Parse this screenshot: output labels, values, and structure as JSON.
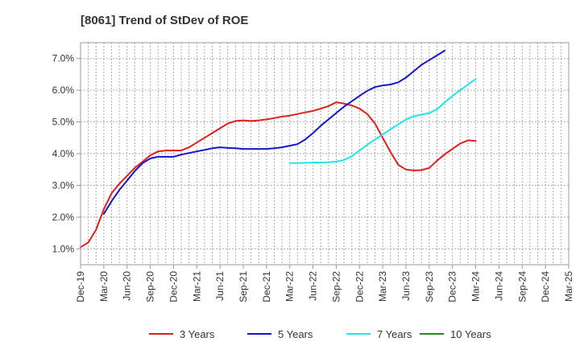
{
  "chart_data": {
    "type": "line",
    "title": "[8061]  Trend of StDev of ROE",
    "xlabel": "",
    "ylabel": "",
    "ylim": [
      0.5,
      7.5
    ],
    "yticks": [
      1.0,
      2.0,
      3.0,
      4.0,
      5.0,
      6.0,
      7.0
    ],
    "ytick_labels": [
      "1.0%",
      "2.0%",
      "3.0%",
      "4.0%",
      "5.0%",
      "6.0%",
      "7.0%"
    ],
    "x_categories": [
      "Dec-19",
      "Mar-20",
      "Jun-20",
      "Sep-20",
      "Dec-20",
      "Mar-21",
      "Jun-21",
      "Sep-21",
      "Dec-21",
      "Mar-22",
      "Jun-22",
      "Sep-22",
      "Dec-22",
      "Mar-23",
      "Jun-23",
      "Sep-23",
      "Dec-23",
      "Mar-24",
      "Jun-24",
      "Sep-24",
      "Dec-24",
      "Mar-25"
    ],
    "grid": true,
    "legend_position": "bottom",
    "series": [
      {
        "name": "3 Years",
        "color": "#dd1f1f",
        "start_index": 0,
        "values": [
          1.05,
          1.2,
          1.6,
          2.25,
          2.75,
          3.05,
          3.3,
          3.55,
          3.75,
          3.95,
          4.07,
          4.1,
          4.1,
          4.1,
          4.2,
          4.35,
          4.5,
          4.65,
          4.8,
          4.95,
          5.03,
          5.05,
          5.03,
          5.05,
          5.08,
          5.12,
          5.17,
          5.2,
          5.25,
          5.3,
          5.35,
          5.42,
          5.5,
          5.62,
          5.58,
          5.52,
          5.42,
          5.25,
          4.95,
          4.5,
          4.05,
          3.65,
          3.5,
          3.47,
          3.48,
          3.55,
          3.78,
          3.98,
          4.15,
          4.32,
          4.42,
          4.4
        ]
      },
      {
        "name": "5 Years",
        "color": "#1515c8",
        "start_index": 3,
        "values": [
          2.1,
          2.5,
          2.85,
          3.15,
          3.45,
          3.7,
          3.85,
          3.9,
          3.9,
          3.9,
          3.97,
          4.02,
          4.07,
          4.12,
          4.17,
          4.2,
          4.18,
          4.17,
          4.15,
          4.15,
          4.15,
          4.15,
          4.17,
          4.2,
          4.25,
          4.3,
          4.45,
          4.65,
          4.88,
          5.08,
          5.28,
          5.48,
          5.65,
          5.82,
          5.98,
          6.1,
          6.15,
          6.18,
          6.25,
          6.4,
          6.6,
          6.8,
          6.95,
          7.1,
          7.25
        ]
      },
      {
        "name": "7 Years",
        "color": "#22e5e5",
        "start_index": 27,
        "values": [
          3.7,
          3.7,
          3.71,
          3.72,
          3.72,
          3.73,
          3.75,
          3.8,
          3.92,
          4.1,
          4.28,
          4.45,
          4.6,
          4.77,
          4.92,
          5.08,
          5.18,
          5.23,
          5.28,
          5.4,
          5.62,
          5.82,
          6.0,
          6.18,
          6.35
        ]
      },
      {
        "name": "10 Years",
        "color": "#1e8f1e",
        "start_index": 0,
        "values": []
      }
    ]
  }
}
